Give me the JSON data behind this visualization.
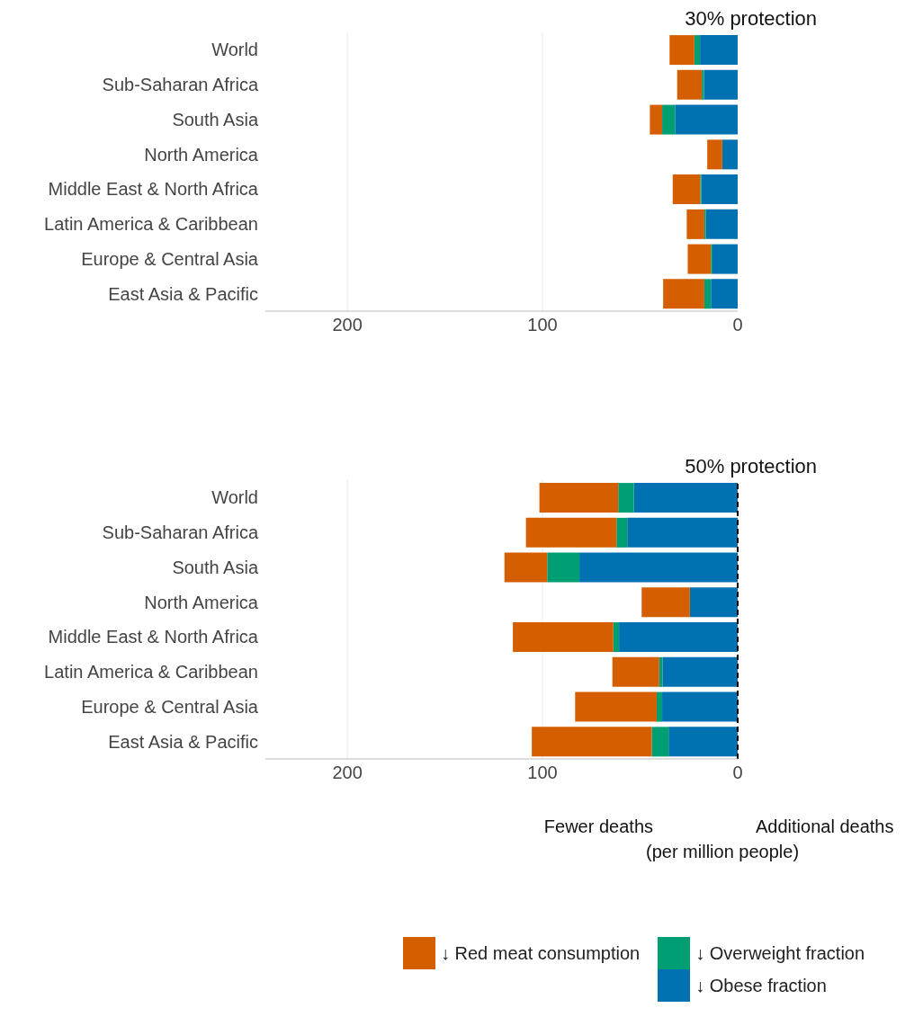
{
  "chart_data": [
    {
      "type": "bar",
      "orientation": "horizontal",
      "stacked": true,
      "title": "30% protection",
      "categories": [
        "World",
        "Sub-Saharan Africa",
        "South Asia",
        "North America",
        "Middle East & North Africa",
        "Latin America & Caribbean",
        "Europe & Central Asia",
        "East Asia & Pacific"
      ],
      "series": [
        {
          "color": "#0072b2",
          "values": [
            19.3,
            17.3,
            32.1,
            7.9,
            18.6,
            16.3,
            12.9,
            13.7
          ]
        },
        {
          "color": "#009e73",
          "values": [
            2.9,
            1.1,
            6.6,
            0,
            0.6,
            0.8,
            0.8,
            3.4
          ]
        },
        {
          "color": "#d55e00",
          "values": [
            12.7,
            12.6,
            6.3,
            7.7,
            14.1,
            9.0,
            11.9,
            21.1
          ]
        }
      ],
      "xlim": [
        242,
        0
      ],
      "xticks": [
        200,
        100,
        0
      ],
      "grid": "x"
    },
    {
      "type": "bar",
      "orientation": "horizontal",
      "stacked": true,
      "title": "50% protection",
      "xlabel": "(per million people)",
      "annotations": [
        "Fewer deaths",
        "Additional deaths"
      ],
      "categories": [
        "World",
        "Sub-Saharan Africa",
        "South Asia",
        "North America",
        "Middle East & North Africa",
        "Latin America & Caribbean",
        "Europe & Central Asia",
        "East Asia & Pacific"
      ],
      "series": [
        {
          "name": "↓ Obese fraction",
          "color": "#0072b2",
          "values": [
            53.2,
            56.6,
            81.1,
            24.5,
            60.8,
            38.5,
            38.7,
            35.4
          ]
        },
        {
          "name": "↓ Overweight fraction",
          "color": "#009e73",
          "values": [
            8.0,
            5.5,
            16.5,
            0,
            2.9,
            1.7,
            2.8,
            8.6
          ]
        },
        {
          "name": "↓ Red meat consumption",
          "color": "#d55e00",
          "values": [
            40.4,
            46.4,
            21.9,
            24.7,
            51.5,
            24.0,
            41.8,
            61.5
          ]
        }
      ],
      "xlim": [
        242,
        0
      ],
      "xticks": [
        200,
        100,
        0
      ],
      "grid": "x",
      "legend": "bottom",
      "ref_lines": [
        {
          "axis": "x",
          "value": 0,
          "color": "#000000",
          "line_style": "dashed"
        }
      ]
    }
  ]
}
